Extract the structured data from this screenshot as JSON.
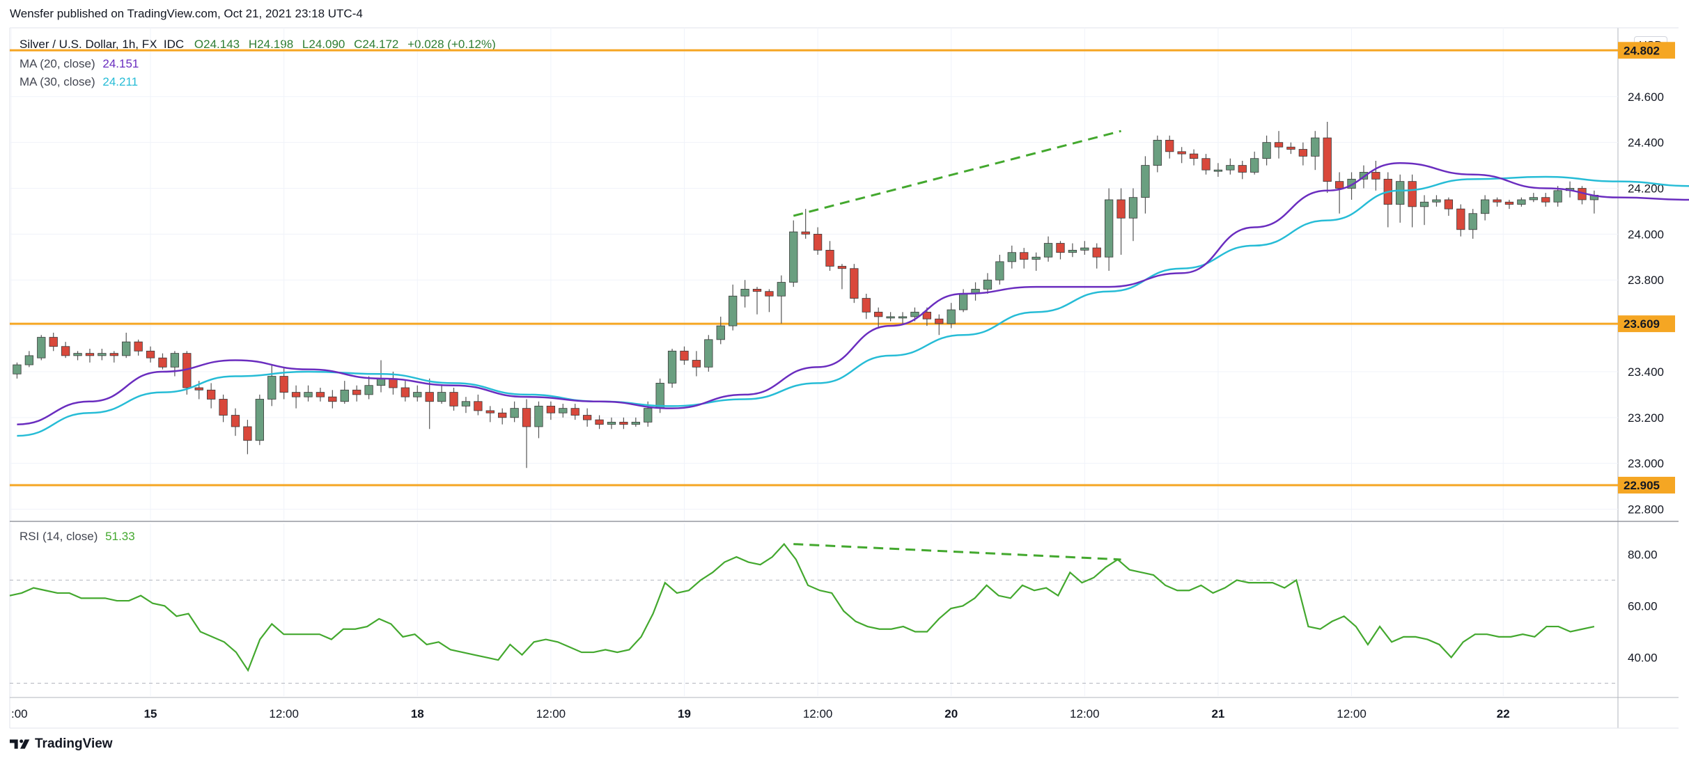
{
  "header": {
    "publisher_text": "Wensfer published on TradingView.com, Oct 21, 2021 23:18 UTC-4"
  },
  "legend": {
    "symbol": "Silver / U.S. Dollar, 1h, FX_IDC",
    "open": "O24.143",
    "high": "H24.198",
    "low": "L24.090",
    "close": "C24.172",
    "change": "+0.028 (+0.12%)",
    "ma20_label": "MA (20, close)",
    "ma20_value": "24.151",
    "ma30_label": "MA (30, close)",
    "ma30_value": "24.211",
    "rsi_label": "RSI (14, close)",
    "rsi_value": "51.33"
  },
  "currency_badge": "USD",
  "footer": {
    "brand": "TradingView"
  },
  "colors": {
    "up": "#6a9f80",
    "down": "#d9483b",
    "ma20": "#6a2dbf",
    "ma30": "#26bcd6",
    "level": "#f5a623",
    "rsi": "#43a82e",
    "dashed": "#43a82e",
    "grid": "#f0f3fa"
  },
  "chart_data": [
    {
      "type": "candlestick",
      "title": "Silver / U.S. Dollar, 1h, FX_IDC",
      "ylim": [
        22.75,
        24.9
      ],
      "y_ticks": [
        "22.800",
        "23.000",
        "23.200",
        "23.400",
        "23.600",
        "23.800",
        "24.000",
        "24.200",
        "24.400",
        "24.600"
      ],
      "x_ticks": [
        ":00",
        "15",
        "12:00",
        "18",
        "12:00",
        "19",
        "12:00",
        "20",
        "12:00",
        "21",
        "12:00",
        "22"
      ],
      "horizontal_levels": [
        "24.802",
        "23.609",
        "22.905"
      ],
      "candles": [
        [
          23.39,
          23.43,
          23.37,
          23.44
        ],
        [
          23.43,
          23.47,
          23.42,
          23.49
        ],
        [
          23.46,
          23.55,
          23.45,
          23.56
        ],
        [
          23.55,
          23.51,
          23.49,
          23.57
        ],
        [
          23.51,
          23.47,
          23.46,
          23.53
        ],
        [
          23.47,
          23.48,
          23.45,
          23.49
        ],
        [
          23.48,
          23.47,
          23.44,
          23.5
        ],
        [
          23.47,
          23.48,
          23.45,
          23.5
        ],
        [
          23.48,
          23.47,
          23.44,
          23.49
        ],
        [
          23.47,
          23.53,
          23.46,
          23.57
        ],
        [
          23.53,
          23.49,
          23.47,
          23.54
        ],
        [
          23.49,
          23.46,
          23.44,
          23.51
        ],
        [
          23.46,
          23.42,
          23.41,
          23.48
        ],
        [
          23.42,
          23.48,
          23.38,
          23.49
        ],
        [
          23.48,
          23.33,
          23.3,
          23.49
        ],
        [
          23.33,
          23.32,
          23.28,
          23.36
        ],
        [
          23.32,
          23.28,
          23.24,
          23.35
        ],
        [
          23.28,
          23.21,
          23.18,
          23.3
        ],
        [
          23.21,
          23.16,
          23.12,
          23.24
        ],
        [
          23.16,
          23.1,
          23.04,
          23.19
        ],
        [
          23.1,
          23.28,
          23.08,
          23.3
        ],
        [
          23.28,
          23.38,
          23.25,
          23.43
        ],
        [
          23.38,
          23.31,
          23.28,
          23.42
        ],
        [
          23.31,
          23.29,
          23.24,
          23.34
        ],
        [
          23.29,
          23.31,
          23.27,
          23.34
        ],
        [
          23.31,
          23.29,
          23.27,
          23.33
        ],
        [
          23.29,
          23.27,
          23.24,
          23.32
        ],
        [
          23.27,
          23.32,
          23.26,
          23.36
        ],
        [
          23.32,
          23.3,
          23.27,
          23.34
        ],
        [
          23.3,
          23.34,
          23.28,
          23.38
        ],
        [
          23.34,
          23.37,
          23.31,
          23.45
        ],
        [
          23.37,
          23.33,
          23.3,
          23.4
        ],
        [
          23.33,
          23.29,
          23.27,
          23.36
        ],
        [
          23.29,
          23.31,
          23.27,
          23.34
        ],
        [
          23.31,
          23.27,
          23.15,
          23.37
        ],
        [
          23.27,
          23.31,
          23.26,
          23.34
        ],
        [
          23.31,
          23.25,
          23.23,
          23.33
        ],
        [
          23.25,
          23.27,
          23.22,
          23.29
        ],
        [
          23.27,
          23.23,
          23.21,
          23.3
        ],
        [
          23.23,
          23.22,
          23.18,
          23.25
        ],
        [
          23.22,
          23.2,
          23.17,
          23.24
        ],
        [
          23.2,
          23.24,
          23.18,
          23.27
        ],
        [
          23.24,
          23.16,
          22.98,
          23.28
        ],
        [
          23.16,
          23.25,
          23.11,
          23.27
        ],
        [
          23.25,
          23.22,
          23.19,
          23.27
        ],
        [
          23.22,
          23.24,
          23.2,
          23.26
        ],
        [
          23.24,
          23.21,
          23.19,
          23.26
        ],
        [
          23.21,
          23.19,
          23.16,
          23.24
        ],
        [
          23.19,
          23.17,
          23.15,
          23.21
        ],
        [
          23.17,
          23.18,
          23.15,
          23.2
        ],
        [
          23.18,
          23.17,
          23.15,
          23.2
        ],
        [
          23.17,
          23.18,
          23.16,
          23.2
        ],
        [
          23.18,
          23.24,
          23.16,
          23.27
        ],
        [
          23.24,
          23.35,
          23.22,
          23.37
        ],
        [
          23.35,
          23.49,
          23.33,
          23.5
        ],
        [
          23.49,
          23.45,
          23.43,
          23.51
        ],
        [
          23.45,
          23.42,
          23.38,
          23.49
        ],
        [
          23.42,
          23.54,
          23.4,
          23.56
        ],
        [
          23.54,
          23.6,
          23.52,
          23.64
        ],
        [
          23.6,
          23.73,
          23.58,
          23.78
        ],
        [
          23.73,
          23.76,
          23.68,
          23.8
        ],
        [
          23.76,
          23.75,
          23.65,
          23.77
        ],
        [
          23.75,
          23.73,
          23.66,
          23.76
        ],
        [
          23.73,
          23.79,
          23.61,
          23.82
        ],
        [
          23.79,
          24.01,
          23.77,
          24.06
        ],
        [
          24.01,
          24.0,
          23.98,
          24.11
        ],
        [
          24.0,
          23.93,
          23.91,
          24.03
        ],
        [
          23.93,
          23.86,
          23.84,
          23.97
        ],
        [
          23.86,
          23.85,
          23.76,
          23.87
        ],
        [
          23.85,
          23.72,
          23.7,
          23.87
        ],
        [
          23.72,
          23.66,
          23.63,
          23.74
        ],
        [
          23.66,
          23.64,
          23.59,
          23.68
        ],
        [
          23.64,
          23.64,
          23.62,
          23.66
        ],
        [
          23.64,
          23.64,
          23.61,
          23.66
        ],
        [
          23.64,
          23.66,
          23.62,
          23.68
        ],
        [
          23.66,
          23.63,
          23.6,
          23.68
        ],
        [
          23.63,
          23.61,
          23.56,
          23.65
        ],
        [
          23.61,
          23.67,
          23.59,
          23.7
        ],
        [
          23.67,
          23.74,
          23.66,
          23.76
        ],
        [
          23.74,
          23.76,
          23.71,
          23.79
        ],
        [
          23.76,
          23.8,
          23.74,
          23.83
        ],
        [
          23.8,
          23.88,
          23.78,
          23.91
        ],
        [
          23.88,
          23.92,
          23.85,
          23.95
        ],
        [
          23.92,
          23.89,
          23.85,
          23.94
        ],
        [
          23.89,
          23.9,
          23.84,
          23.92
        ],
        [
          23.9,
          23.96,
          23.88,
          23.99
        ],
        [
          23.96,
          23.92,
          23.89,
          23.97
        ],
        [
          23.92,
          23.93,
          23.9,
          23.96
        ],
        [
          23.93,
          23.94,
          23.91,
          23.97
        ],
        [
          23.94,
          23.9,
          23.85,
          23.96
        ],
        [
          23.9,
          24.15,
          23.84,
          24.2
        ],
        [
          24.15,
          24.07,
          23.91,
          24.2
        ],
        [
          24.07,
          24.16,
          23.97,
          24.2
        ],
        [
          24.16,
          24.3,
          24.09,
          24.34
        ],
        [
          24.3,
          24.41,
          24.27,
          24.43
        ],
        [
          24.41,
          24.36,
          24.33,
          24.43
        ],
        [
          24.36,
          24.35,
          24.31,
          24.38
        ],
        [
          24.35,
          24.33,
          24.3,
          24.37
        ],
        [
          24.33,
          24.28,
          24.26,
          24.35
        ],
        [
          24.28,
          24.28,
          24.25,
          24.31
        ],
        [
          24.28,
          24.3,
          24.26,
          24.33
        ],
        [
          24.3,
          24.27,
          24.24,
          24.32
        ],
        [
          24.27,
          24.33,
          24.26,
          24.36
        ],
        [
          24.33,
          24.4,
          24.3,
          24.43
        ],
        [
          24.4,
          24.38,
          24.33,
          24.45
        ],
        [
          24.38,
          24.37,
          24.35,
          24.4
        ],
        [
          24.37,
          24.34,
          24.3,
          24.4
        ],
        [
          24.34,
          24.42,
          24.28,
          24.45
        ],
        [
          24.42,
          24.23,
          24.18,
          24.49
        ],
        [
          24.23,
          24.2,
          24.09,
          24.27
        ],
        [
          24.2,
          24.24,
          24.15,
          24.27
        ],
        [
          24.24,
          24.27,
          24.2,
          24.3
        ],
        [
          24.27,
          24.24,
          24.19,
          24.32
        ],
        [
          24.24,
          24.13,
          24.03,
          24.27
        ],
        [
          24.13,
          24.23,
          24.05,
          24.26
        ],
        [
          24.23,
          24.12,
          24.03,
          24.26
        ],
        [
          24.12,
          24.14,
          24.04,
          24.17
        ],
        [
          24.14,
          24.15,
          24.12,
          24.17
        ],
        [
          24.15,
          24.11,
          24.08,
          24.16
        ],
        [
          24.11,
          24.02,
          23.99,
          24.13
        ],
        [
          24.02,
          24.09,
          23.98,
          24.11
        ],
        [
          24.09,
          24.15,
          24.06,
          24.17
        ],
        [
          24.15,
          24.14,
          24.12,
          24.16
        ],
        [
          24.14,
          24.13,
          24.11,
          24.15
        ],
        [
          24.13,
          24.15,
          24.12,
          24.16
        ],
        [
          24.15,
          24.16,
          24.14,
          24.18
        ],
        [
          24.16,
          24.14,
          24.12,
          24.18
        ],
        [
          24.14,
          24.19,
          24.12,
          24.21
        ],
        [
          24.19,
          24.2,
          24.16,
          24.23
        ],
        [
          24.2,
          24.15,
          24.13,
          24.21
        ],
        [
          24.15,
          24.17,
          24.09,
          24.19
        ]
      ],
      "ma20": [
        [
          0,
          23.17
        ],
        [
          6,
          23.27
        ],
        [
          12,
          23.4
        ],
        [
          18,
          23.45
        ],
        [
          24,
          23.41
        ],
        [
          30,
          23.37
        ],
        [
          36,
          23.34
        ],
        [
          42,
          23.29
        ],
        [
          48,
          23.27
        ],
        [
          54,
          23.24
        ],
        [
          60,
          23.3
        ],
        [
          66,
          23.42
        ],
        [
          72,
          23.6
        ],
        [
          78,
          23.74
        ],
        [
          84,
          23.77
        ],
        [
          90,
          23.77
        ],
        [
          96,
          23.83
        ],
        [
          102,
          24.03
        ],
        [
          108,
          24.19
        ],
        [
          114,
          24.31
        ],
        [
          120,
          24.26
        ],
        [
          126,
          24.2
        ],
        [
          132,
          24.16
        ],
        [
          138,
          24.15
        ]
      ],
      "ma30": [
        [
          0,
          23.12
        ],
        [
          6,
          23.22
        ],
        [
          12,
          23.31
        ],
        [
          18,
          23.38
        ],
        [
          24,
          23.4
        ],
        [
          30,
          23.39
        ],
        [
          36,
          23.35
        ],
        [
          42,
          23.3
        ],
        [
          48,
          23.27
        ],
        [
          54,
          23.25
        ],
        [
          60,
          23.28
        ],
        [
          66,
          23.35
        ],
        [
          72,
          23.47
        ],
        [
          78,
          23.56
        ],
        [
          84,
          23.66
        ],
        [
          90,
          23.75
        ],
        [
          96,
          23.85
        ],
        [
          102,
          23.95
        ],
        [
          108,
          24.06
        ],
        [
          114,
          24.19
        ],
        [
          120,
          24.24
        ],
        [
          126,
          24.25
        ],
        [
          132,
          24.23
        ],
        [
          138,
          24.21
        ]
      ],
      "trendline": [
        [
          64,
          24.08
        ],
        [
          91,
          24.45
        ]
      ]
    },
    {
      "type": "line",
      "title": "RSI (14, close)",
      "ylim": [
        25,
        92
      ],
      "y_ticks": [
        "40.00",
        "60.00",
        "80.00"
      ],
      "dashed_levels": [
        30,
        70
      ],
      "values": [
        64,
        65,
        67,
        66,
        65,
        65,
        63,
        63,
        63,
        62,
        62,
        64,
        61,
        60,
        56,
        57,
        50,
        48,
        46,
        42,
        35,
        47,
        53,
        49,
        49,
        49,
        49,
        47,
        51,
        51,
        52,
        55,
        53,
        48,
        49,
        45,
        46,
        43,
        42,
        41,
        40,
        39,
        45,
        41,
        46,
        47,
        46,
        44,
        42,
        42,
        43,
        42,
        43,
        48,
        57,
        69,
        65,
        66,
        70,
        73,
        77,
        79,
        77,
        76,
        79,
        84,
        78,
        68,
        66,
        65,
        58,
        54,
        52,
        51,
        51,
        52,
        50,
        50,
        55,
        59,
        60,
        63,
        68,
        64,
        63,
        68,
        66,
        67,
        64,
        73,
        69,
        71,
        75,
        78,
        74,
        73,
        72,
        68,
        66,
        66,
        68,
        65,
        67,
        70,
        69,
        69,
        69,
        67,
        70,
        52,
        51,
        54,
        56,
        52,
        45,
        52,
        46,
        48,
        48,
        47,
        45,
        40,
        46,
        49,
        49,
        48,
        48,
        49,
        48,
        52,
        52,
        50,
        51,
        52
      ],
      "trendline": [
        [
          64,
          84
        ],
        [
          91,
          78
        ]
      ]
    }
  ]
}
